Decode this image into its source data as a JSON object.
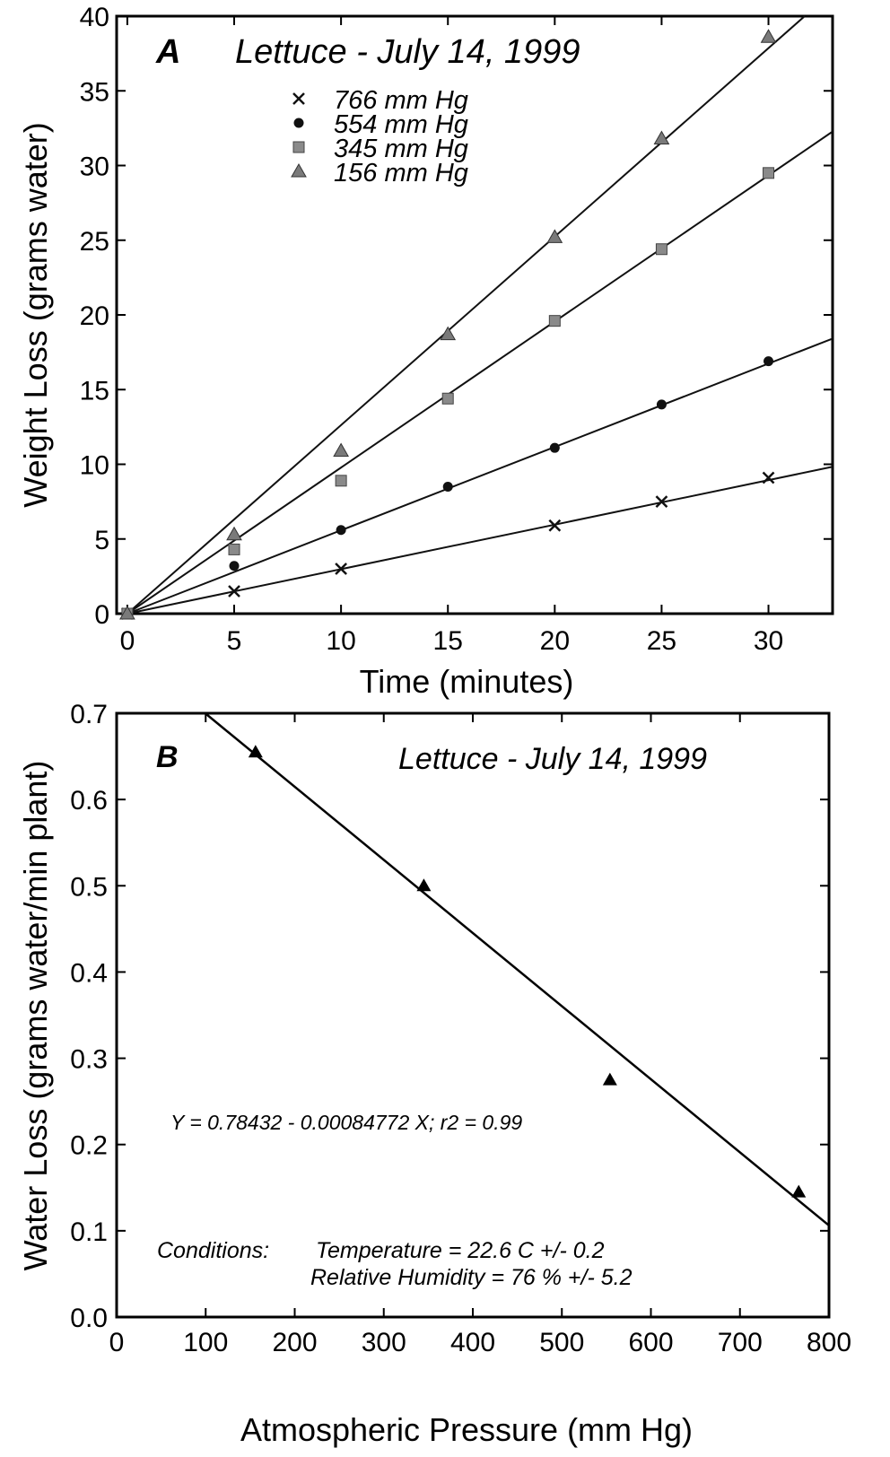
{
  "chart_data": [
    {
      "type": "scatter",
      "panel_label": "A",
      "title": "Lettuce - July 14, 1999",
      "xlabel": "Time (minutes)",
      "ylabel": "Weight Loss (grams water)",
      "xlim": [
        -0.5,
        33
      ],
      "ylim": [
        0,
        40
      ],
      "xticks": [
        0,
        5,
        10,
        15,
        20,
        25,
        30
      ],
      "yticks": [
        0,
        5,
        10,
        15,
        20,
        25,
        30,
        35,
        40
      ],
      "legend_position": "upper-left",
      "grid": false,
      "series": [
        {
          "name": "766 mm Hg",
          "marker": "x",
          "x": [
            0,
            5,
            10,
            20,
            25,
            30
          ],
          "y": [
            0,
            1.5,
            3.0,
            5.9,
            7.5,
            9.1
          ],
          "fit_slope": 0.298
        },
        {
          "name": "554 mm Hg",
          "marker": "circle",
          "x": [
            0,
            5,
            10,
            15,
            20,
            25,
            30
          ],
          "y": [
            0,
            3.2,
            5.6,
            8.5,
            11.1,
            14.0,
            16.9
          ],
          "fit_slope": 0.558
        },
        {
          "name": "345 mm Hg",
          "marker": "square",
          "x": [
            0,
            5,
            10,
            15,
            20,
            25,
            30
          ],
          "y": [
            0,
            4.3,
            8.9,
            14.4,
            19.6,
            24.4,
            29.5
          ],
          "fit_slope": 0.978
        },
        {
          "name": "156 mm Hg",
          "marker": "triangle",
          "x": [
            0,
            5,
            10,
            15,
            20,
            25,
            30
          ],
          "y": [
            0,
            5.3,
            10.9,
            18.7,
            25.2,
            31.8,
            38.6
          ],
          "fit_slope": 1.262
        }
      ]
    },
    {
      "type": "scatter",
      "panel_label": "B",
      "title": "Lettuce - July 14, 1999",
      "xlabel": "Atmospheric Pressure (mm Hg)",
      "ylabel": "Water Loss (grams water/min plant)",
      "xlim": [
        0,
        800
      ],
      "ylim": [
        0,
        0.7
      ],
      "xticks": [
        0,
        100,
        200,
        300,
        400,
        500,
        600,
        700,
        800
      ],
      "yticks": [
        0.0,
        0.1,
        0.2,
        0.3,
        0.4,
        0.5,
        0.6,
        0.7
      ],
      "ytick_labels": [
        "0.0",
        "0.1",
        "0.2",
        "0.3",
        "0.4",
        "0.5",
        "0.6",
        "0.7"
      ],
      "grid": false,
      "series": [
        {
          "marker": "triangle",
          "x": [
            156,
            345,
            554,
            766
          ],
          "y": [
            0.655,
            0.5,
            0.275,
            0.145
          ]
        }
      ],
      "fit": {
        "intercept": 0.78432,
        "slope": -0.00084772
      },
      "annotations": [
        "Y = 0.78432 - 0.00084772 X;  r2 = 0.99",
        "Conditions:",
        "Temperature = 22.6 C +/- 0.2",
        "Relative Humidity = 76 % +/- 5.2"
      ]
    }
  ]
}
